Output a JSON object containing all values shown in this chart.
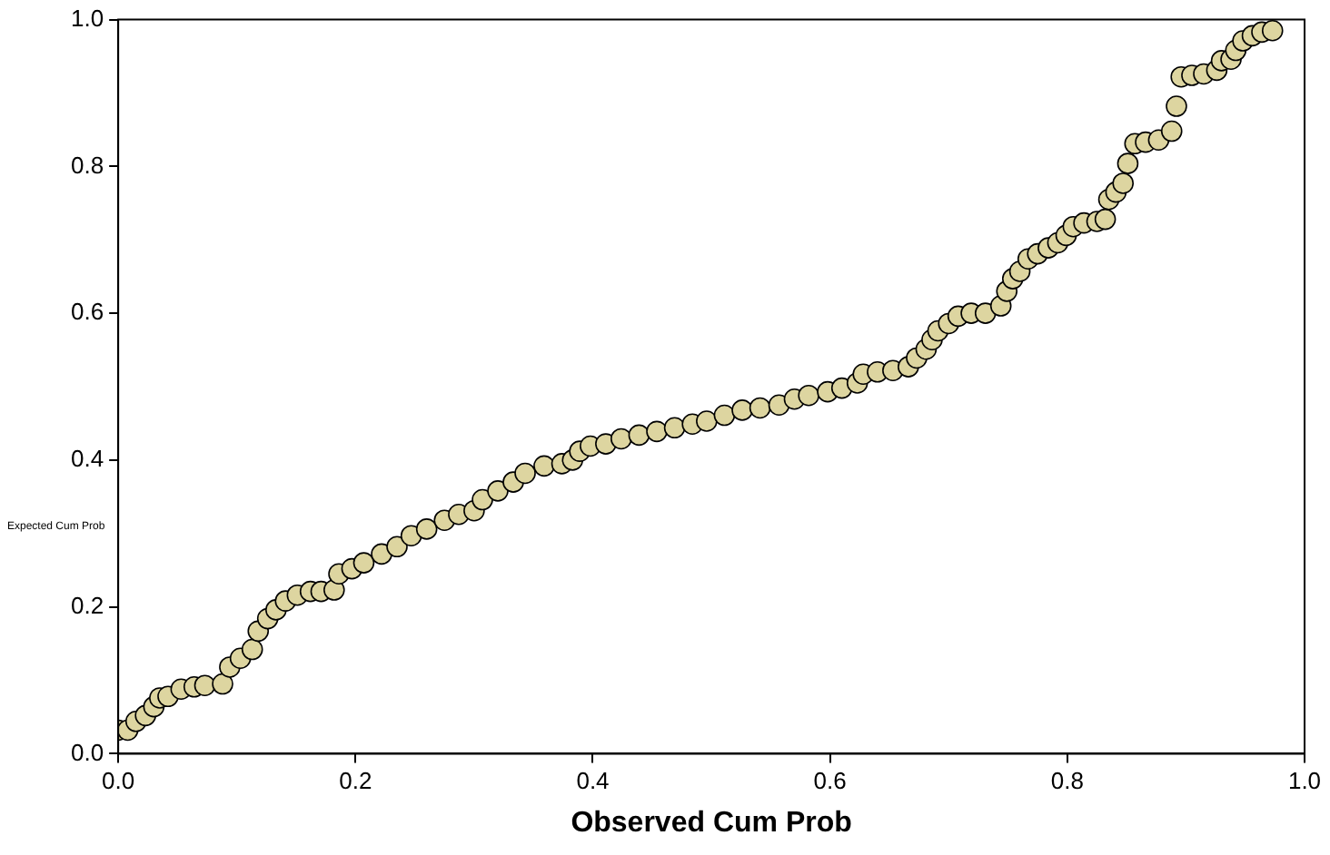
{
  "chart_data": {
    "type": "scatter",
    "xlabel": "Observed Cum Prob",
    "ylabel": "Expected Cum Prob",
    "marker": "circle",
    "xlim": [
      0,
      1
    ],
    "ylim": [
      0,
      1
    ],
    "xticks": [
      {
        "value": 0,
        "label": "0.0"
      },
      {
        "value": 0.2,
        "label": "0.2"
      },
      {
        "value": 0.4,
        "label": "0.4"
      },
      {
        "value": 0.6,
        "label": "0.6"
      },
      {
        "value": 0.8,
        "label": "0.8"
      },
      {
        "value": 1,
        "label": "1.0"
      }
    ],
    "yticks": [
      {
        "value": 0,
        "label": "0.0"
      },
      {
        "value": 0.2,
        "label": "0.2"
      },
      {
        "value": 0.4,
        "label": "0.4"
      },
      {
        "value": 0.6,
        "label": "0.6"
      },
      {
        "value": 0.8,
        "label": "0.8"
      },
      {
        "value": 1,
        "label": "1.0"
      }
    ],
    "series": [
      {
        "color": "#ddd5a0",
        "x": [
          0.0,
          0.008,
          0.015,
          0.023,
          0.03,
          0.035,
          0.042,
          0.053,
          0.064,
          0.073,
          0.088,
          0.094,
          0.103,
          0.113,
          0.118,
          0.126,
          0.133,
          0.141,
          0.151,
          0.162,
          0.171,
          0.182,
          0.186,
          0.197,
          0.207,
          0.222,
          0.235,
          0.247,
          0.26,
          0.275,
          0.287,
          0.3,
          0.307,
          0.32,
          0.333,
          0.343,
          0.359,
          0.374,
          0.383,
          0.389,
          0.398,
          0.411,
          0.424,
          0.439,
          0.454,
          0.469,
          0.484,
          0.496,
          0.511,
          0.526,
          0.541,
          0.557,
          0.57,
          0.582,
          0.598,
          0.61,
          0.623,
          0.628,
          0.64,
          0.653,
          0.666,
          0.673,
          0.681,
          0.686,
          0.691,
          0.7,
          0.708,
          0.719,
          0.731,
          0.744,
          0.749,
          0.754,
          0.76,
          0.767,
          0.775,
          0.784,
          0.792,
          0.799,
          0.805,
          0.814,
          0.825,
          0.832,
          0.835,
          0.841,
          0.847,
          0.851,
          0.857,
          0.866,
          0.877,
          0.888,
          0.892,
          0.896,
          0.905,
          0.915,
          0.926,
          0.93,
          0.938,
          0.942,
          0.948,
          0.956,
          0.964,
          0.973
        ],
        "values": [
          0.032,
          0.032,
          0.044,
          0.052,
          0.064,
          0.076,
          0.078,
          0.088,
          0.091,
          0.093,
          0.095,
          0.118,
          0.13,
          0.142,
          0.167,
          0.184,
          0.196,
          0.208,
          0.216,
          0.221,
          0.221,
          0.223,
          0.245,
          0.252,
          0.26,
          0.272,
          0.282,
          0.297,
          0.306,
          0.318,
          0.326,
          0.331,
          0.346,
          0.358,
          0.37,
          0.382,
          0.392,
          0.395,
          0.4,
          0.412,
          0.419,
          0.422,
          0.429,
          0.434,
          0.439,
          0.444,
          0.449,
          0.453,
          0.461,
          0.468,
          0.471,
          0.475,
          0.483,
          0.488,
          0.493,
          0.498,
          0.505,
          0.517,
          0.52,
          0.522,
          0.527,
          0.539,
          0.551,
          0.564,
          0.576,
          0.586,
          0.596,
          0.6,
          0.6,
          0.61,
          0.63,
          0.647,
          0.657,
          0.674,
          0.681,
          0.689,
          0.696,
          0.706,
          0.718,
          0.723,
          0.725,
          0.728,
          0.755,
          0.765,
          0.777,
          0.804,
          0.831,
          0.833,
          0.836,
          0.848,
          0.882,
          0.922,
          0.924,
          0.926,
          0.931,
          0.944,
          0.946,
          0.958,
          0.971,
          0.978,
          0.983,
          0.985
        ]
      }
    ]
  }
}
